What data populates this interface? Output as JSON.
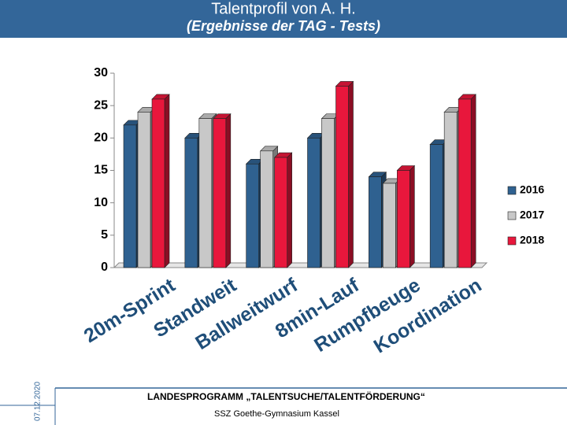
{
  "chart_data": {
    "type": "bar3d",
    "title": "Talentprofil von A. H.",
    "subtitle": "(Ergebnisse der TAG - Tests)",
    "categories": [
      "20m-Sprint",
      "Standweit",
      "Ballweitwurf",
      "8min-Lauf",
      "Rumpfbeuge",
      "Koordination"
    ],
    "series": [
      {
        "name": "2016",
        "color": "#2f6190",
        "values": [
          22,
          20,
          16,
          20,
          14,
          19
        ]
      },
      {
        "name": "2017",
        "color": "#c8c8c8",
        "values": [
          24,
          23,
          18,
          23,
          13,
          24
        ]
      },
      {
        "name": "2018",
        "color": "#e8173c",
        "values": [
          26,
          23,
          17,
          28,
          15,
          26
        ]
      }
    ],
    "ylim": [
      0,
      30
    ],
    "yticks": [
      0,
      5,
      10,
      15,
      20,
      25,
      30
    ],
    "legend": "right"
  },
  "footer": {
    "program": "LANDESPROGRAMM „TALENTSUCHE/TALENTFÖRDERUNG“",
    "school": "SSZ Goethe-Gymnasium Kassel",
    "date": "07.12.2020"
  }
}
